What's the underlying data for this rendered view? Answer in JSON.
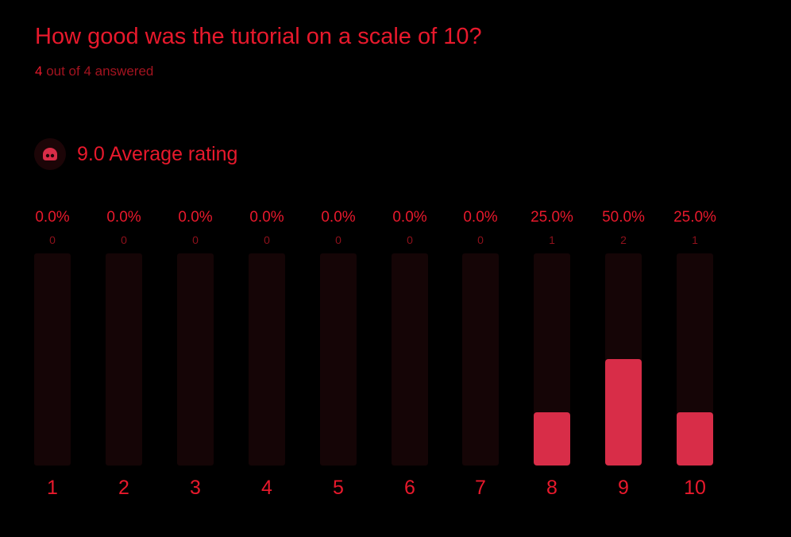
{
  "question": {
    "title": "How good was the tutorial on a scale of 10?",
    "answered_count": "4",
    "answered_suffix": "out of 4 answered"
  },
  "average": {
    "text": "9.0 Average rating",
    "icon": "rating-face-icon"
  },
  "colors": {
    "text": "#e8192c",
    "muted": "#a3131f",
    "bar": "#d82d48",
    "track": "#150506",
    "background": "#000000"
  },
  "chart_data": {
    "type": "bar",
    "categories": [
      "1",
      "2",
      "3",
      "4",
      "5",
      "6",
      "7",
      "8",
      "9",
      "10"
    ],
    "percent_labels": [
      "0.0%",
      "0.0%",
      "0.0%",
      "0.0%",
      "0.0%",
      "0.0%",
      "0.0%",
      "25.0%",
      "50.0%",
      "25.0%"
    ],
    "values": [
      0,
      0,
      0,
      0,
      0,
      0,
      0,
      1,
      2,
      1
    ],
    "ylim": [
      0,
      4
    ],
    "grid": false
  }
}
